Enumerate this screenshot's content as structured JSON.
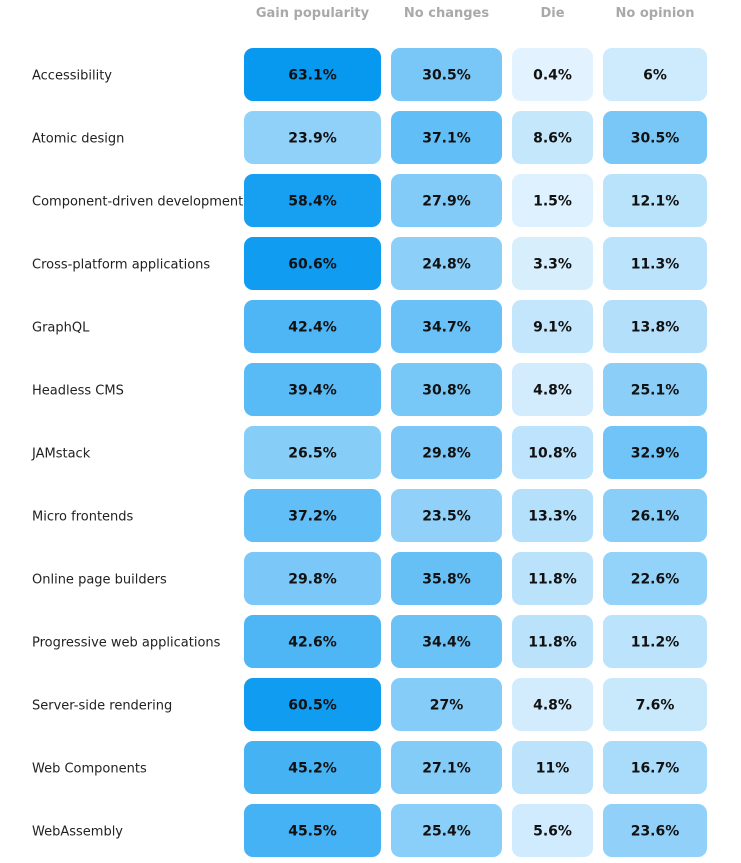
{
  "chart_data": {
    "type": "heatmap",
    "columns": [
      "Gain popularity",
      "No changes",
      "Die",
      "No opinion"
    ],
    "rows": [
      {
        "label": "Accessibility",
        "values": [
          "63.1%",
          "30.5%",
          "0.4%",
          "6%"
        ]
      },
      {
        "label": "Atomic design",
        "values": [
          "23.9%",
          "37.1%",
          "8.6%",
          "30.5%"
        ]
      },
      {
        "label": "Component-driven development",
        "values": [
          "58.4%",
          "27.9%",
          "1.5%",
          "12.1%"
        ]
      },
      {
        "label": "Cross-platform applications",
        "values": [
          "60.6%",
          "24.8%",
          "3.3%",
          "11.3%"
        ]
      },
      {
        "label": "GraphQL",
        "values": [
          "42.4%",
          "34.7%",
          "9.1%",
          "13.8%"
        ]
      },
      {
        "label": "Headless CMS",
        "values": [
          "39.4%",
          "30.8%",
          "4.8%",
          "25.1%"
        ]
      },
      {
        "label": "JAMstack",
        "values": [
          "26.5%",
          "29.8%",
          "10.8%",
          "32.9%"
        ]
      },
      {
        "label": "Micro frontends",
        "values": [
          "37.2%",
          "23.5%",
          "13.3%",
          "26.1%"
        ]
      },
      {
        "label": "Online page builders",
        "values": [
          "29.8%",
          "35.8%",
          "11.8%",
          "22.6%"
        ]
      },
      {
        "label": "Progressive web applications",
        "values": [
          "42.6%",
          "34.4%",
          "11.8%",
          "11.2%"
        ]
      },
      {
        "label": "Server-side rendering",
        "values": [
          "60.5%",
          "27%",
          "4.8%",
          "7.6%"
        ]
      },
      {
        "label": "Web Components",
        "values": [
          "45.2%",
          "27.1%",
          "11%",
          "16.7%"
        ]
      },
      {
        "label": "WebAssembly",
        "values": [
          "45.5%",
          "25.4%",
          "5.6%",
          "23.6%"
        ]
      }
    ],
    "colors": {
      "low": "#e3f3fe",
      "high": "#0096f0",
      "header_text": "#a9a9a9",
      "label_text": "#222222",
      "value_text": "#111111"
    }
  }
}
